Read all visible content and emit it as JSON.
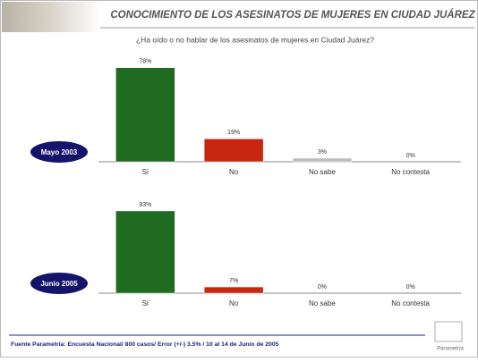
{
  "header": {
    "title": "CONOCIMIENTO DE LOS ASESINATOS DE MUJERES  EN CIUDAD JUÁREZ",
    "subtitle": "¿Ha oído o no hablar de los asesinatos de mujeres en Ciudad Juárez?"
  },
  "chart_data": [
    {
      "type": "bar",
      "label": "Mayo 2003",
      "categories": [
        "Sí",
        "No",
        "No sabe",
        "No contesta"
      ],
      "values": [
        78,
        19,
        3,
        0
      ],
      "value_labels": [
        "78%",
        "19%",
        "3%",
        "0%"
      ],
      "colors": [
        "#1f6b1f",
        "#c8260f",
        "#bdbdbd",
        "#bdbdbd"
      ],
      "ylim": [
        0,
        100
      ]
    },
    {
      "type": "bar",
      "label": "Junio 2005",
      "categories": [
        "Sí",
        "No",
        "No sabe",
        "No contesta"
      ],
      "values": [
        93,
        7,
        0,
        0
      ],
      "value_labels": [
        "93%",
        "7%",
        "0%",
        "0%"
      ],
      "colors": [
        "#1f6b1f",
        "#c8260f",
        "#bdbdbd",
        "#bdbdbd"
      ],
      "ylim": [
        0,
        100
      ]
    }
  ],
  "footer": {
    "source": "Fuente Parametría: Encuesta Nacional/ 800 casos/ Error  (+/-)  3.5% / 10 al 14 de Junio de 2005",
    "brand": "Parametría"
  }
}
